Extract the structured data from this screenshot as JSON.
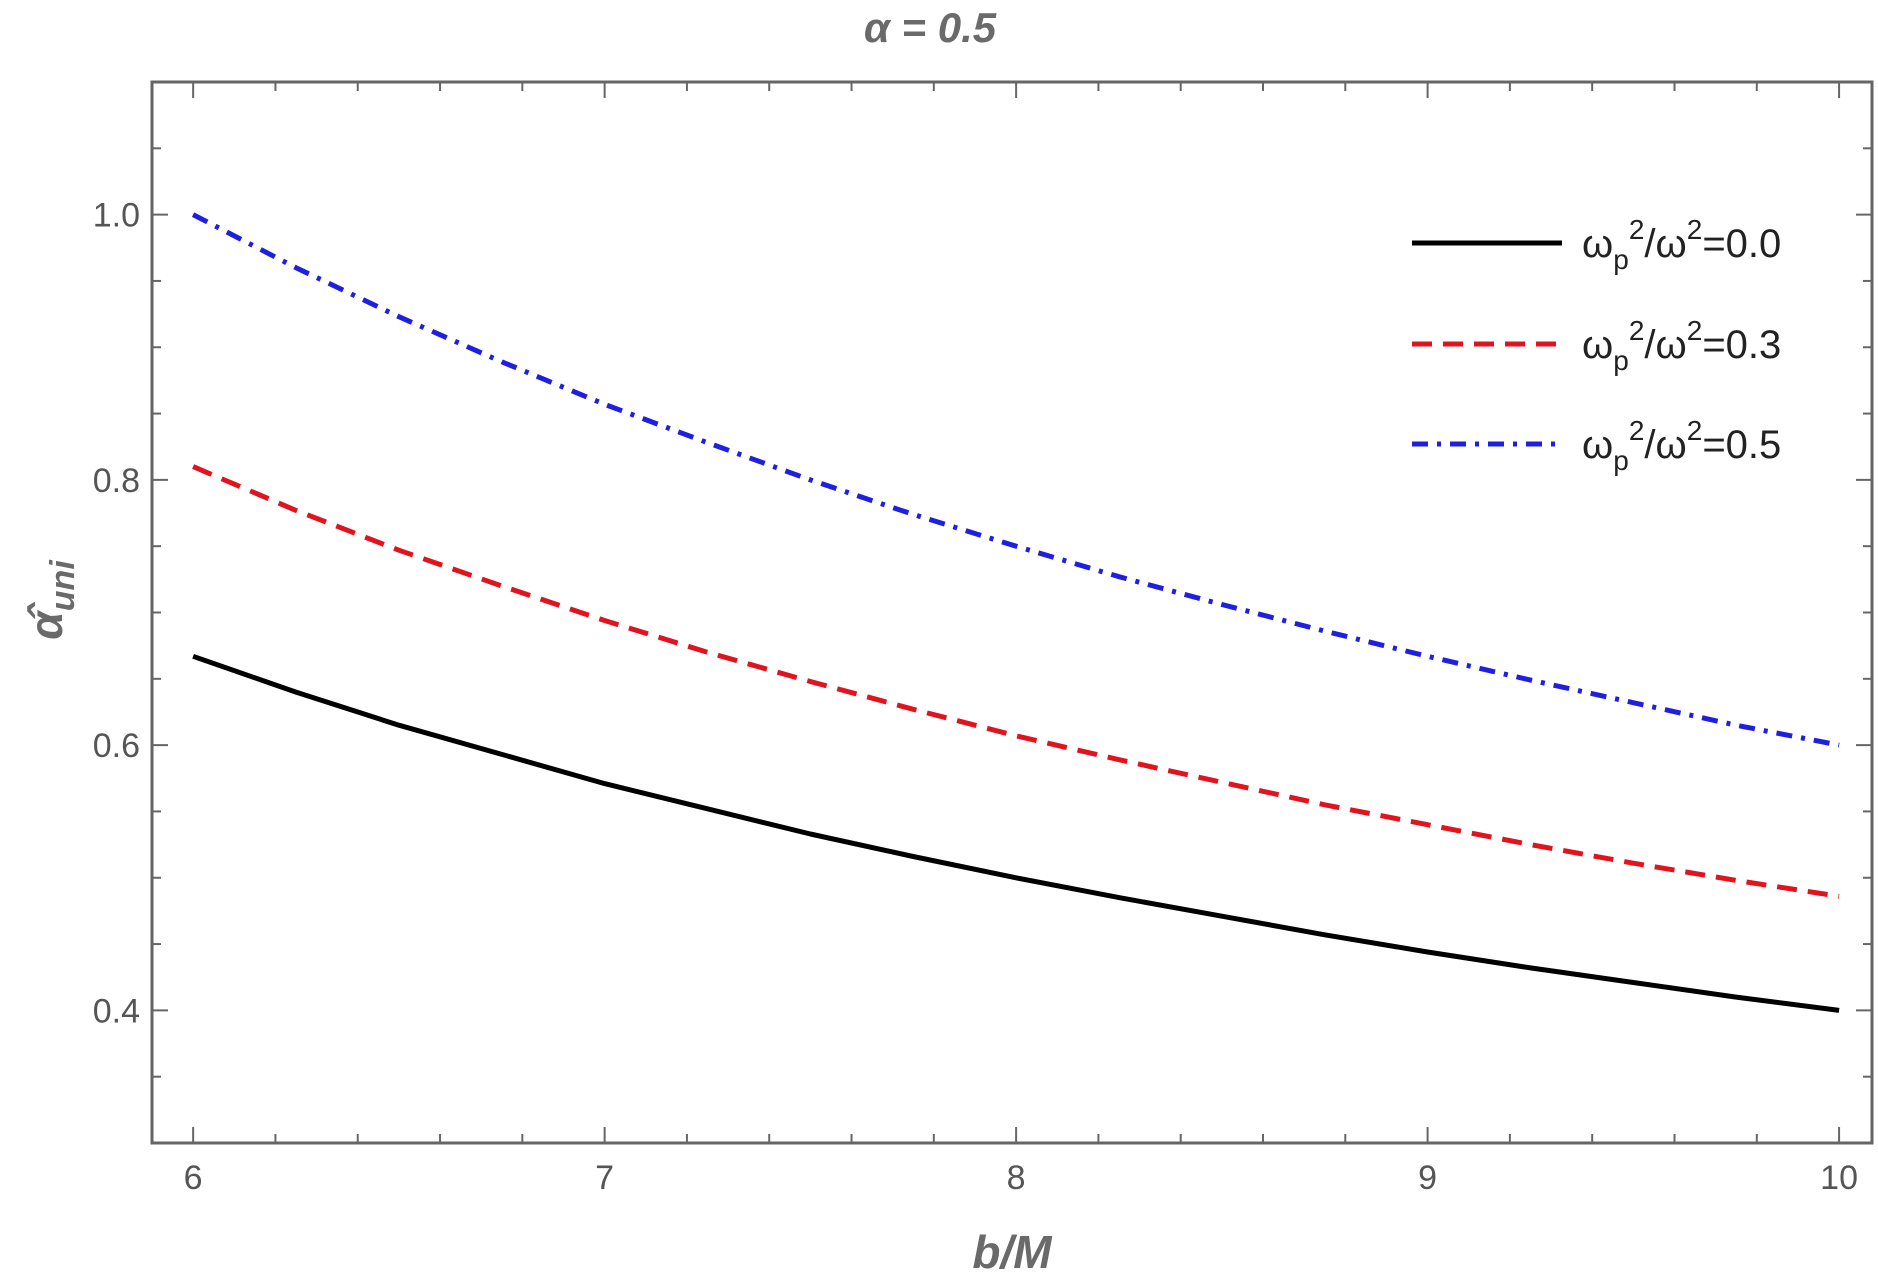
{
  "chart_data": {
    "type": "line",
    "title": "α = 0.5",
    "xlabel": "b/M",
    "ylabel": "α̂",
    "ylabel_sub": "uni",
    "xlim": [
      5.9,
      10.08
    ],
    "ylim": [
      0.3,
      1.1
    ],
    "x_ticks": [
      6,
      7,
      8,
      9,
      10
    ],
    "x_tick_labels": [
      "6",
      "7",
      "8",
      "9",
      "10"
    ],
    "y_ticks": [
      0.4,
      0.6,
      0.8,
      1.0
    ],
    "y_tick_labels": [
      "0.4",
      "0.6",
      "0.8",
      "1.0"
    ],
    "grid": false,
    "legend_position": "top-right",
    "x": [
      6,
      6.25,
      6.5,
      6.75,
      7,
      7.25,
      7.5,
      7.75,
      8,
      8.25,
      8.5,
      8.75,
      9,
      9.25,
      9.5,
      9.75,
      10
    ],
    "series": [
      {
        "name": "ωp²/ω²=0.0",
        "name_parts": {
          "symbol": "ω",
          "sub": "p",
          "sup": "2",
          "mid": "/ω",
          "sup2": "2",
          "value": "=0.0"
        },
        "color": "#000000",
        "style": "solid",
        "values": [
          0.667,
          0.64,
          0.615,
          0.593,
          0.571,
          0.552,
          0.533,
          0.516,
          0.5,
          0.485,
          0.471,
          0.457,
          0.444,
          0.432,
          0.421,
          0.41,
          0.4
        ]
      },
      {
        "name": "ωp²/ω²=0.3",
        "name_parts": {
          "symbol": "ω",
          "sub": "p",
          "sup": "2",
          "mid": "/ω",
          "sup2": "2",
          "value": "=0.3"
        },
        "color": "#e0141e",
        "style": "dashed",
        "values": [
          0.81,
          0.777,
          0.747,
          0.72,
          0.694,
          0.67,
          0.648,
          0.627,
          0.607,
          0.589,
          0.572,
          0.555,
          0.54,
          0.525,
          0.511,
          0.498,
          0.486
        ]
      },
      {
        "name": "ωp²/ω²=0.5",
        "name_parts": {
          "symbol": "ω",
          "sub": "p",
          "sup": "2",
          "mid": "/ω",
          "sup2": "2",
          "value": "=0.5"
        },
        "color": "#1f1fe0",
        "style": "dash-dot",
        "values": [
          1.0,
          0.96,
          0.923,
          0.889,
          0.857,
          0.828,
          0.8,
          0.774,
          0.75,
          0.727,
          0.706,
          0.686,
          0.667,
          0.649,
          0.632,
          0.615,
          0.6
        ]
      }
    ]
  }
}
